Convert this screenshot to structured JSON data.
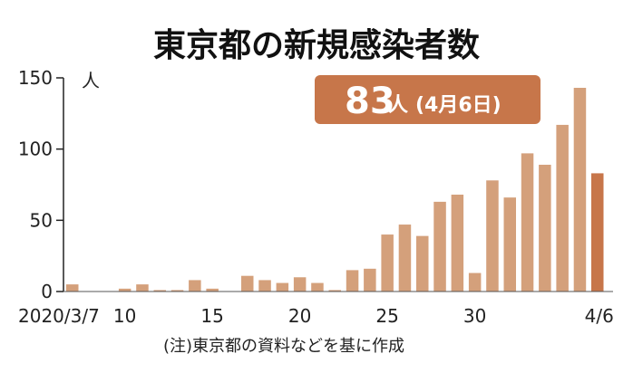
{
  "chart_data": {
    "type": "bar",
    "title": "東京都の新規感染者数",
    "unit_label": "人",
    "note": "(注)東京都の資料などを基に作成",
    "callout": {
      "value": "83",
      "unit": "人",
      "date": "(4月6日)"
    },
    "colors": {
      "bar": "#d4a07b",
      "highlight": "#c7764a",
      "callout_bg": "#c7764a"
    },
    "ylim": [
      0,
      150
    ],
    "y_ticks": [
      0,
      50,
      100,
      150
    ],
    "grid": false,
    "x_tick_labels": [
      {
        "index": 0,
        "label": "2020/3/7"
      },
      {
        "index": 3,
        "label": "10"
      },
      {
        "index": 8,
        "label": "15"
      },
      {
        "index": 13,
        "label": "20"
      },
      {
        "index": 18,
        "label": "25"
      },
      {
        "index": 23,
        "label": "30"
      },
      {
        "index": 30,
        "label": "4/6"
      }
    ],
    "values": [
      5,
      0,
      0,
      2,
      5,
      1,
      1,
      8,
      2,
      0,
      11,
      8,
      6,
      10,
      6,
      1,
      15,
      16,
      40,
      47,
      39,
      63,
      68,
      13,
      78,
      66,
      97,
      89,
      117,
      143,
      83
    ],
    "highlight_index": 30
  }
}
